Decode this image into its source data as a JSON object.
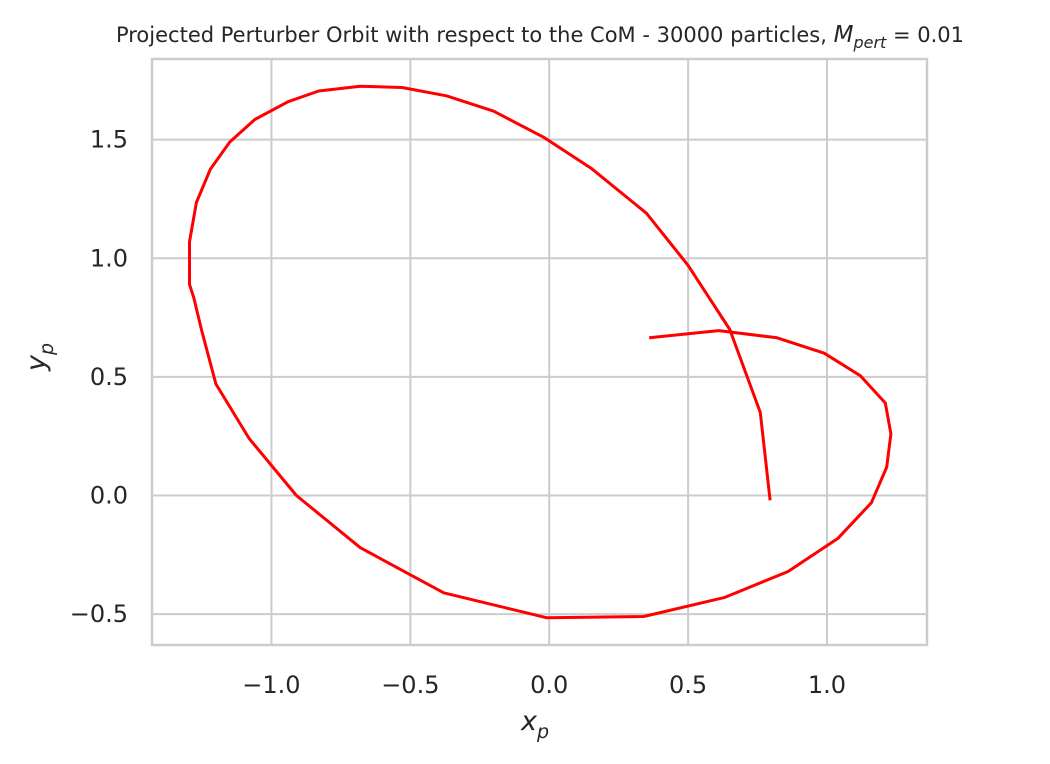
{
  "chart_data": {
    "type": "line",
    "title": {
      "main": "Projected Perturber Orbit with respect to the CoM - 30000 particles, ",
      "symbol": "M",
      "subscript": "pert",
      "value": " = 0.01"
    },
    "xlabel": {
      "symbol": "x",
      "subscript": "p"
    },
    "ylabel": {
      "symbol": "y",
      "subscript": "p"
    },
    "xlim": [
      -1.43,
      1.36
    ],
    "ylim": [
      -0.63,
      1.84
    ],
    "xticks": [
      -1.0,
      -0.5,
      0.0,
      0.5,
      1.0
    ],
    "xtick_labels": [
      "−1.0",
      "−0.5",
      "0.0",
      "0.5",
      "1.0"
    ],
    "yticks": [
      -0.5,
      0.0,
      0.5,
      1.0,
      1.5
    ],
    "ytick_labels": [
      "−0.5",
      "0.0",
      "0.5",
      "1.0",
      "1.5"
    ],
    "grid": true,
    "legend": "none",
    "series": [
      {
        "color": "#ff0000",
        "x": [
          0.795,
          0.76,
          0.65,
          0.5,
          0.35,
          0.15,
          -0.02,
          -0.2,
          -0.37,
          -0.53,
          -0.68,
          -0.83,
          -0.94,
          -1.06,
          -1.15,
          -1.22,
          -1.27,
          -1.295,
          -1.295,
          -1.28,
          -1.25,
          -1.2,
          -1.08,
          -0.91,
          -0.68,
          -0.38,
          -0.01,
          0.34,
          0.63,
          0.86,
          1.04,
          1.16,
          1.215,
          1.23,
          1.21,
          1.12,
          0.99,
          0.82,
          0.61,
          0.36
        ],
        "y": [
          -0.02,
          0.35,
          0.7,
          0.97,
          1.19,
          1.38,
          1.51,
          1.62,
          1.685,
          1.72,
          1.725,
          1.705,
          1.66,
          1.585,
          1.49,
          1.375,
          1.235,
          1.07,
          0.89,
          0.835,
          0.69,
          0.47,
          0.24,
          0.0,
          -0.22,
          -0.41,
          -0.515,
          -0.51,
          -0.43,
          -0.32,
          -0.18,
          -0.03,
          0.12,
          0.26,
          0.39,
          0.505,
          0.6,
          0.665,
          0.695,
          0.665
        ]
      }
    ]
  },
  "colors": {
    "line": "#ff0000",
    "grid": "#cccccc",
    "spine": "#cccccc",
    "text": "#262626"
  }
}
